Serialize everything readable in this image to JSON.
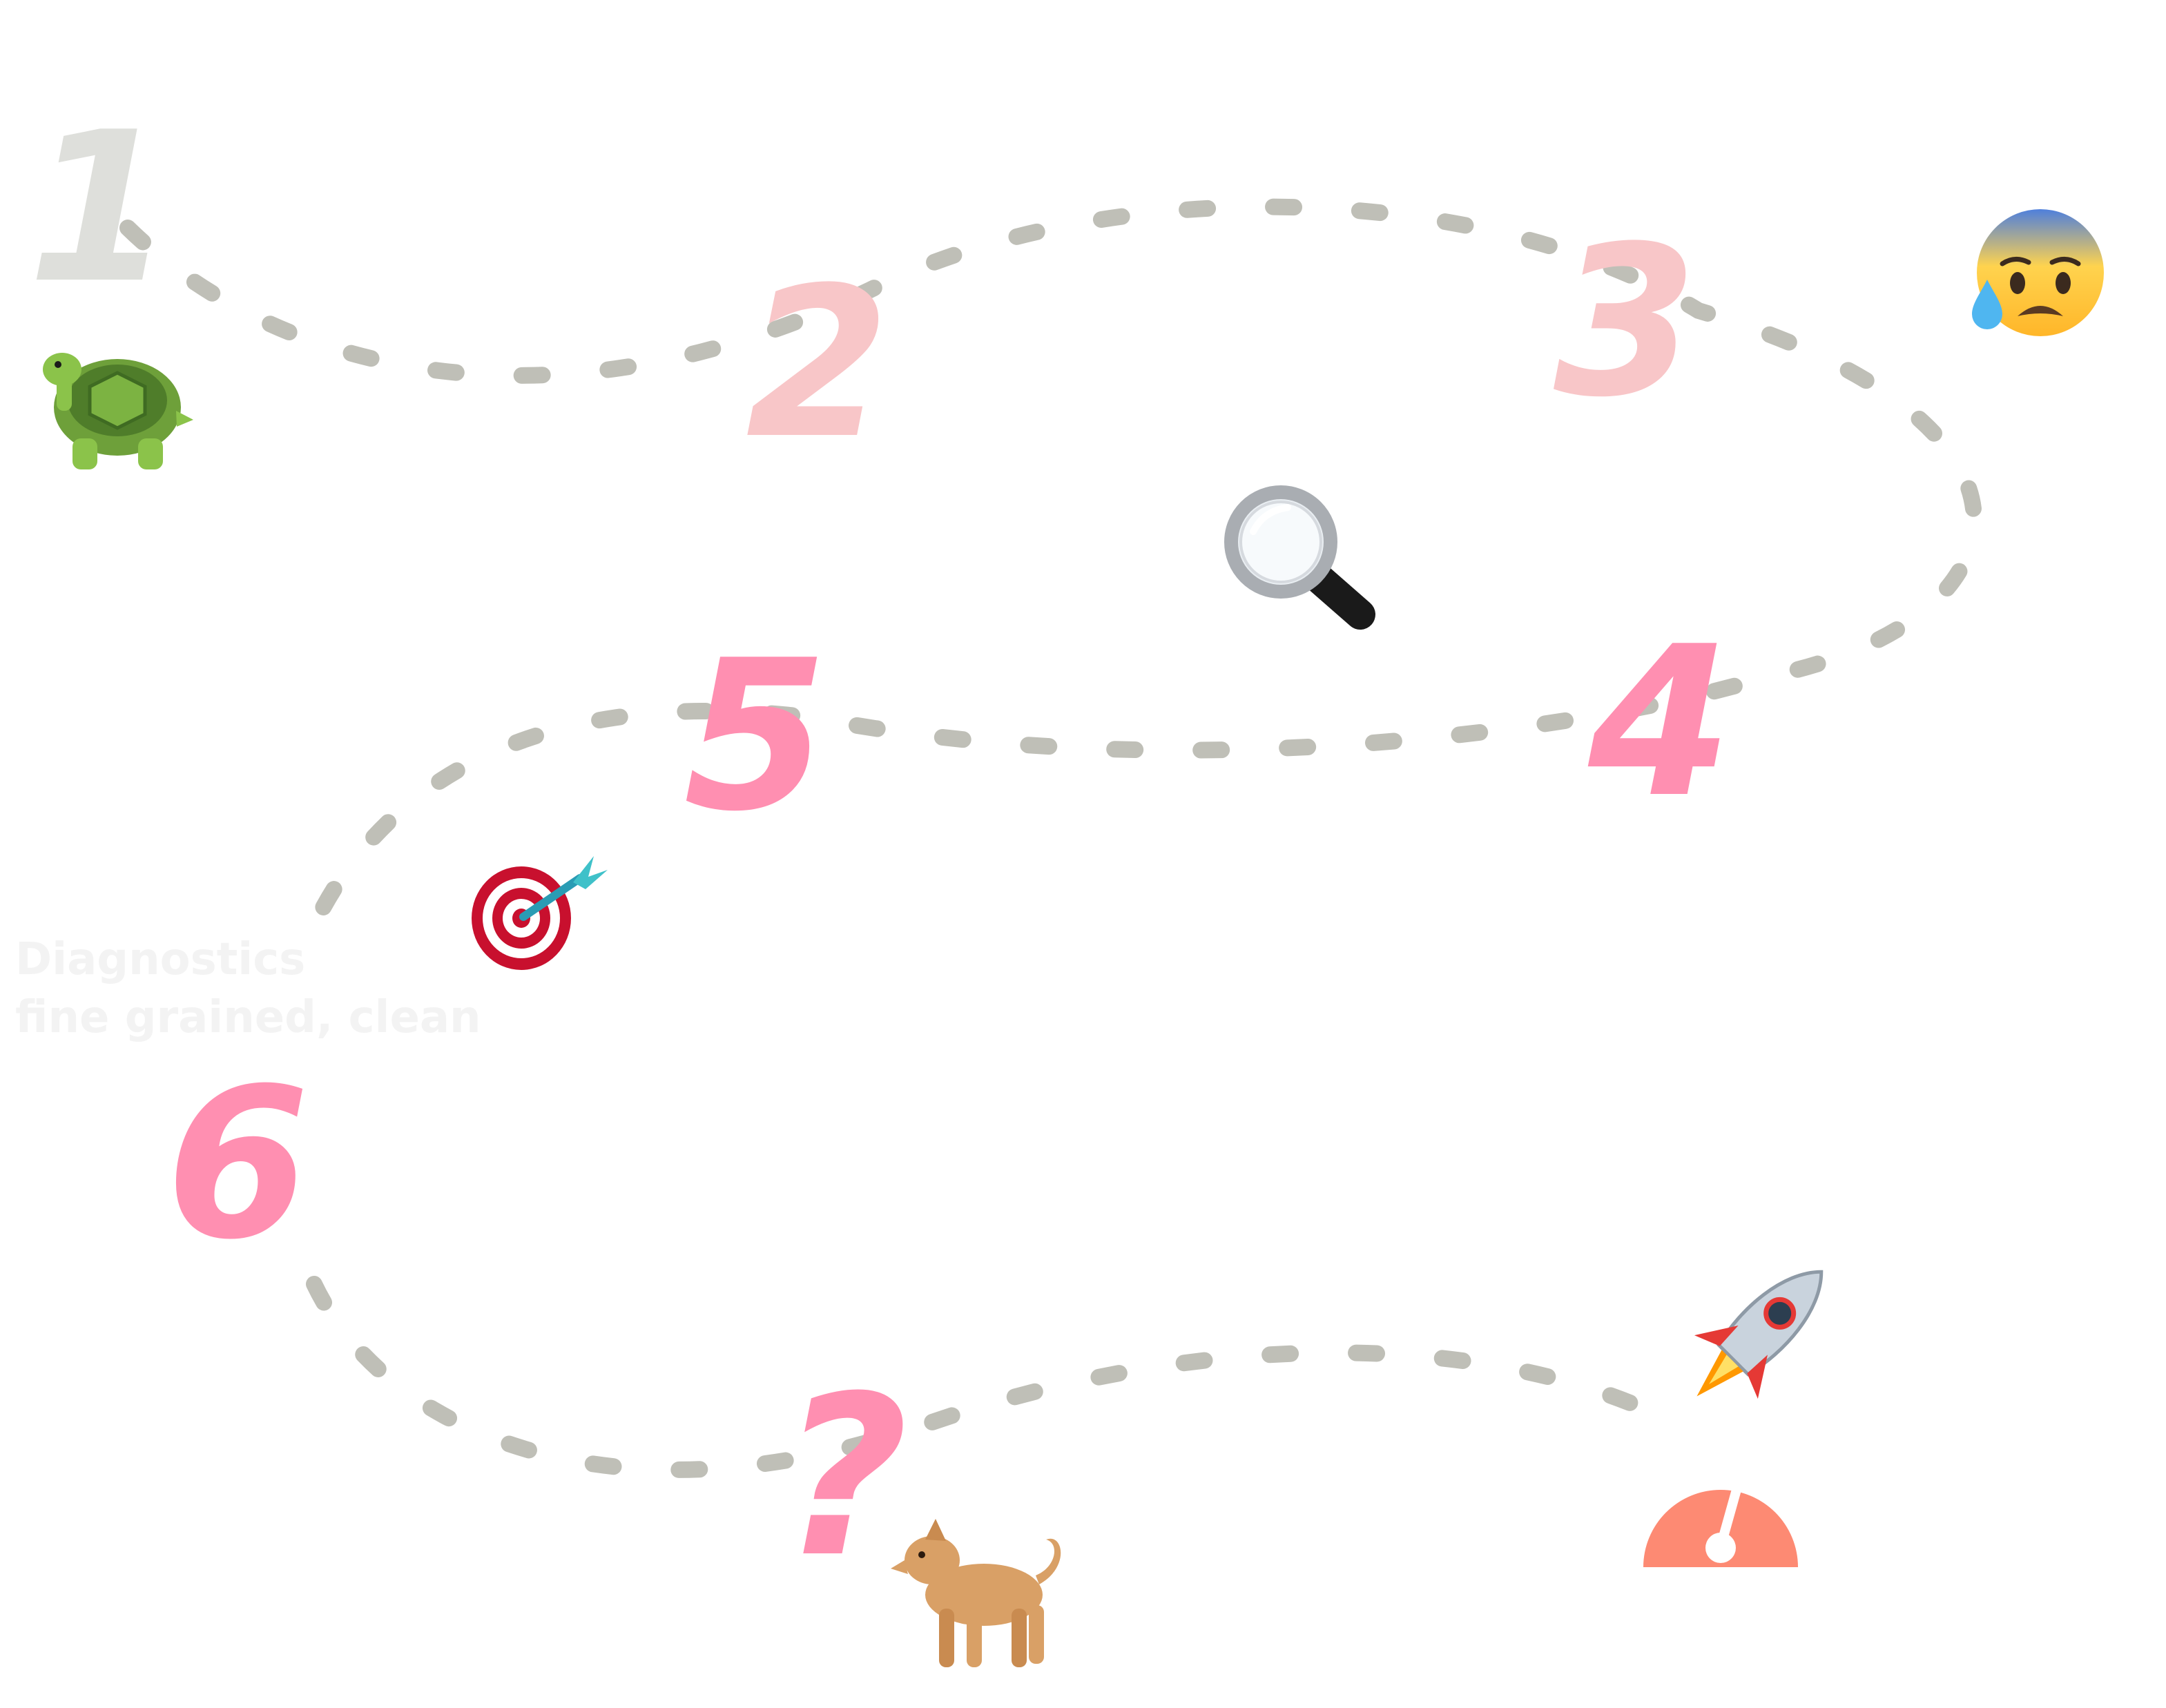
{
  "steps": [
    {
      "label": "1",
      "color": "#dedfdb"
    },
    {
      "label": "2",
      "color": "#f8c6c8"
    },
    {
      "label": "3",
      "color": "#f8c6c8"
    },
    {
      "label": "4",
      "color": "#ff8fb1"
    },
    {
      "label": "5",
      "color": "#ff8fb1"
    },
    {
      "label": "6",
      "color": "#ff8fb1"
    },
    {
      "label": "?",
      "color": "#ff8fb1"
    }
  ],
  "caption": {
    "line1": "Diagnostics",
    "line2": "fine grained, clean"
  },
  "icons": [
    "turtle-icon",
    "magnifying-glass-icon",
    "anxious-face-icon",
    "target-dart-icon",
    "dog-icon",
    "rocket-icon",
    "gauge-icon"
  ],
  "colors": {
    "path": "#bfbfb7",
    "gauge": "#fd8a73",
    "caption": "#f3f3f3"
  }
}
